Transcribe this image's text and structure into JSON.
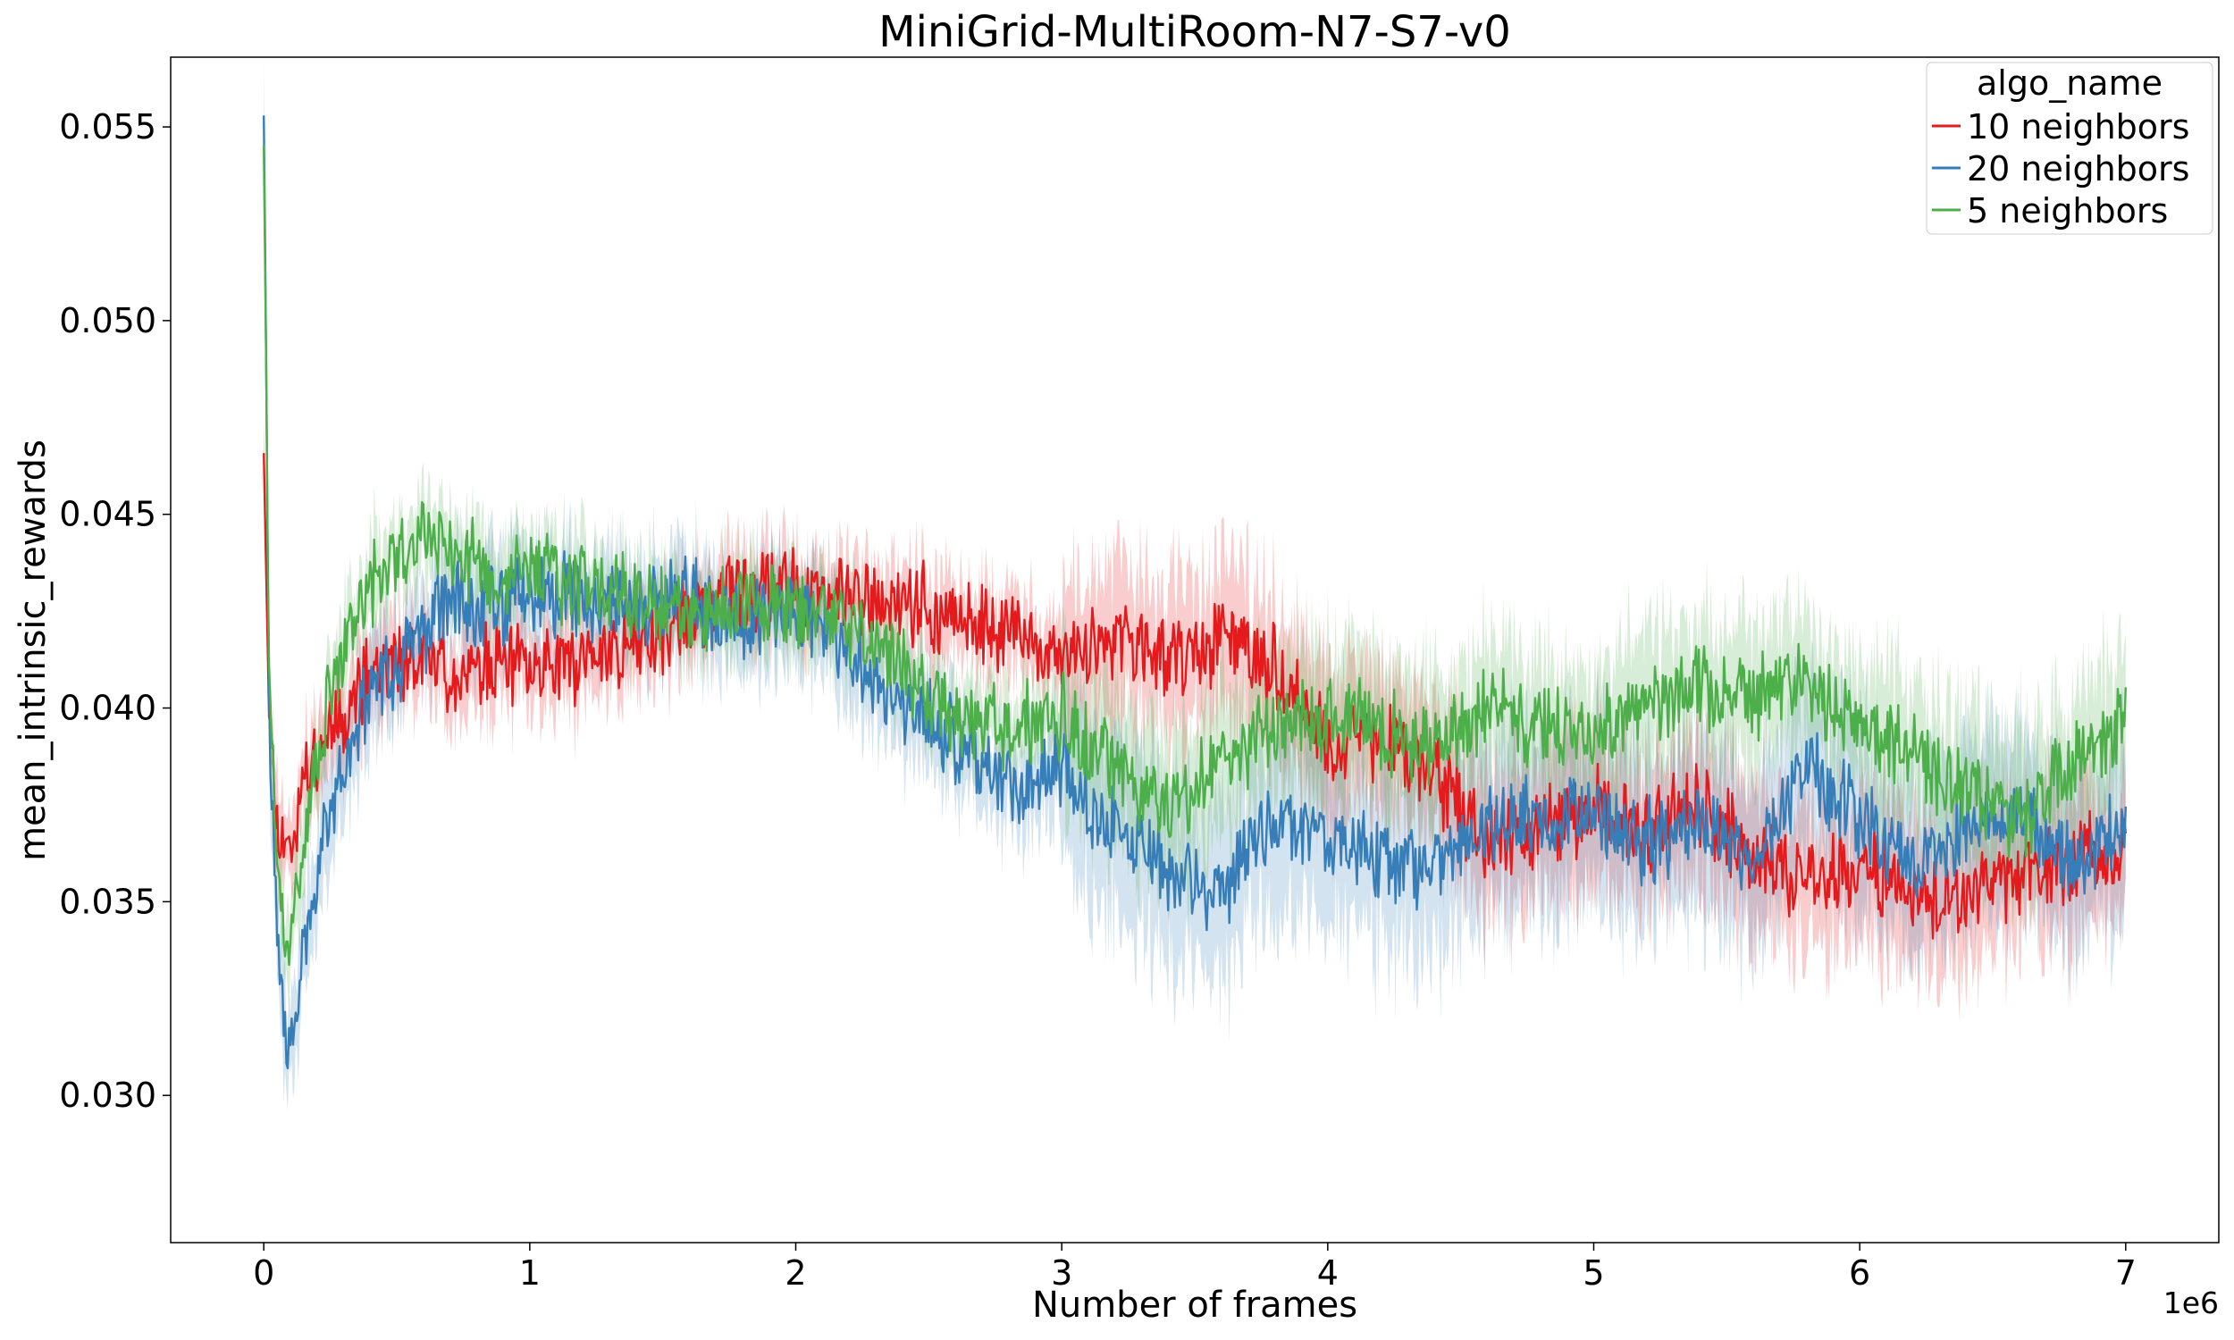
{
  "chart_data": {
    "type": "line",
    "title": "MiniGrid-MultiRoom-N7-S7-v0",
    "xlabel": "Number of frames",
    "ylabel": "mean_intrinsic_rewards",
    "x_offset_label": "1e6",
    "xlim": [
      -0.35,
      7.35
    ],
    "ylim": [
      0.0262,
      0.0568
    ],
    "x_ticks": [
      0,
      1,
      2,
      3,
      4,
      5,
      6,
      7
    ],
    "x_tick_labels": [
      "0",
      "1",
      "2",
      "3",
      "4",
      "5",
      "6",
      "7"
    ],
    "y_ticks": [
      0.03,
      0.035,
      0.04,
      0.045,
      0.05,
      0.055
    ],
    "y_tick_labels": [
      "0.030",
      "0.035",
      "0.040",
      "0.045",
      "0.050",
      "0.055"
    ],
    "grid": false,
    "legend": {
      "title": "algo_name",
      "placement": "top-right"
    },
    "series": [
      {
        "name": "10 neighbors",
        "color": "#e41a1c",
        "x": [
          0,
          0.02,
          0.05,
          0.08,
          0.1,
          0.15,
          0.2,
          0.3,
          0.4,
          0.5,
          0.6,
          0.7,
          0.8,
          0.9,
          1.0,
          1.2,
          1.4,
          1.6,
          1.8,
          2.0,
          2.2,
          2.4,
          2.6,
          2.8,
          3.0,
          3.2,
          3.4,
          3.6,
          3.8,
          4.0,
          4.2,
          4.4,
          4.6,
          4.8,
          5.0,
          5.2,
          5.4,
          5.6,
          5.8,
          6.0,
          6.2,
          6.4,
          6.6,
          6.8,
          7.0
        ],
        "y": [
          0.047,
          0.04,
          0.037,
          0.0365,
          0.0365,
          0.038,
          0.039,
          0.04,
          0.0408,
          0.0412,
          0.0412,
          0.041,
          0.041,
          0.041,
          0.041,
          0.0412,
          0.0418,
          0.0422,
          0.0432,
          0.043,
          0.0428,
          0.0428,
          0.0422,
          0.042,
          0.0412,
          0.0418,
          0.0412,
          0.0418,
          0.041,
          0.039,
          0.0392,
          0.0382,
          0.0365,
          0.0368,
          0.0375,
          0.0368,
          0.0375,
          0.0362,
          0.0355,
          0.036,
          0.0352,
          0.035,
          0.0355,
          0.0362,
          0.0362
        ],
        "band": 0.0018
      },
      {
        "name": "20 neighbors",
        "color": "#377eb8",
        "x": [
          0,
          0.02,
          0.05,
          0.08,
          0.1,
          0.15,
          0.2,
          0.3,
          0.4,
          0.5,
          0.6,
          0.7,
          0.8,
          0.9,
          1.0,
          1.2,
          1.4,
          1.6,
          1.8,
          2.0,
          2.2,
          2.4,
          2.6,
          2.8,
          3.0,
          3.2,
          3.4,
          3.6,
          3.8,
          4.0,
          4.2,
          4.4,
          4.6,
          4.8,
          5.0,
          5.2,
          5.4,
          5.6,
          5.8,
          6.0,
          6.2,
          6.4,
          6.6,
          6.8,
          7.0
        ],
        "y": [
          0.0554,
          0.04,
          0.034,
          0.0315,
          0.031,
          0.0335,
          0.036,
          0.0385,
          0.0405,
          0.0412,
          0.042,
          0.0428,
          0.0425,
          0.0428,
          0.0432,
          0.0428,
          0.0425,
          0.043,
          0.0422,
          0.0425,
          0.0415,
          0.04,
          0.0392,
          0.0378,
          0.0385,
          0.0368,
          0.0358,
          0.0352,
          0.0372,
          0.0365,
          0.0362,
          0.0358,
          0.0372,
          0.037,
          0.0375,
          0.0365,
          0.037,
          0.036,
          0.0385,
          0.0372,
          0.0358,
          0.0368,
          0.0372,
          0.036,
          0.0372
        ],
        "band": 0.0022
      },
      {
        "name": "5 neighbors",
        "color": "#4daf4a",
        "x": [
          0,
          0.02,
          0.05,
          0.08,
          0.1,
          0.15,
          0.2,
          0.3,
          0.4,
          0.5,
          0.6,
          0.7,
          0.8,
          0.9,
          1.0,
          1.2,
          1.4,
          1.6,
          1.8,
          2.0,
          2.2,
          2.4,
          2.6,
          2.8,
          3.0,
          3.2,
          3.4,
          3.6,
          3.8,
          4.0,
          4.2,
          4.4,
          4.6,
          4.8,
          5.0,
          5.2,
          5.4,
          5.6,
          5.8,
          6.0,
          6.2,
          6.4,
          6.6,
          6.8,
          7.0
        ],
        "y": [
          0.0548,
          0.041,
          0.0355,
          0.034,
          0.034,
          0.0365,
          0.039,
          0.0415,
          0.0432,
          0.0438,
          0.0445,
          0.0442,
          0.0438,
          0.0435,
          0.0435,
          0.0432,
          0.0428,
          0.0425,
          0.0428,
          0.0425,
          0.0422,
          0.041,
          0.0398,
          0.0395,
          0.0398,
          0.0385,
          0.0375,
          0.0385,
          0.0395,
          0.0398,
          0.0395,
          0.039,
          0.0402,
          0.0395,
          0.0392,
          0.0402,
          0.0405,
          0.0402,
          0.0408,
          0.0395,
          0.0388,
          0.0378,
          0.0372,
          0.0385,
          0.0395
        ],
        "band": 0.0018
      }
    ]
  }
}
